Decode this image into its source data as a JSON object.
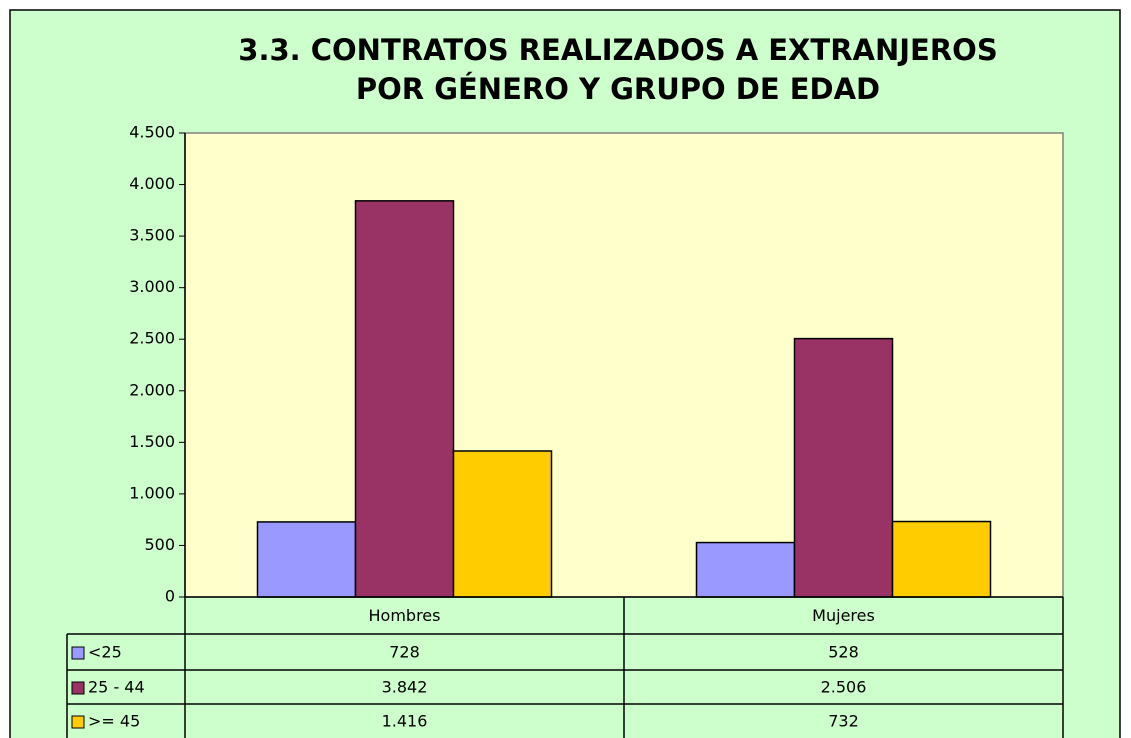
{
  "chart_data": {
    "type": "bar",
    "title": [
      "3.3. CONTRATOS REALIZADOS A EXTRANJEROS",
      "POR GÉNERO Y GRUPO DE EDAD"
    ],
    "categories": [
      "Hombres",
      "Mujeres"
    ],
    "series": [
      {
        "name": "<25",
        "color": "#9999ff",
        "values": [
          728,
          528
        ]
      },
      {
        "name": "25 - 44",
        "color": "#993366",
        "values": [
          3842,
          2506
        ],
        "value_labels": [
          "3.842",
          "2.506"
        ]
      },
      {
        "name": ">= 45",
        "color": "#ffcc00",
        "values": [
          1416,
          732
        ],
        "value_labels": [
          "1.416",
          "732"
        ]
      }
    ],
    "ylim": [
      0,
      4500
    ],
    "yticks": [
      0,
      500,
      {
        "value": 1000,
        "label": "1.000"
      },
      {
        "value": 1500,
        "label": "1.500"
      },
      {
        "value": 2000,
        "label": "2.000"
      },
      {
        "value": 2500,
        "label": "2.500"
      },
      {
        "value": 3000,
        "label": "3.000"
      },
      {
        "value": 3500,
        "label": "3.500"
      },
      {
        "value": 4000,
        "label": "4.000"
      },
      {
        "value": 4500,
        "label": "4.500"
      }
    ],
    "grid": false
  }
}
